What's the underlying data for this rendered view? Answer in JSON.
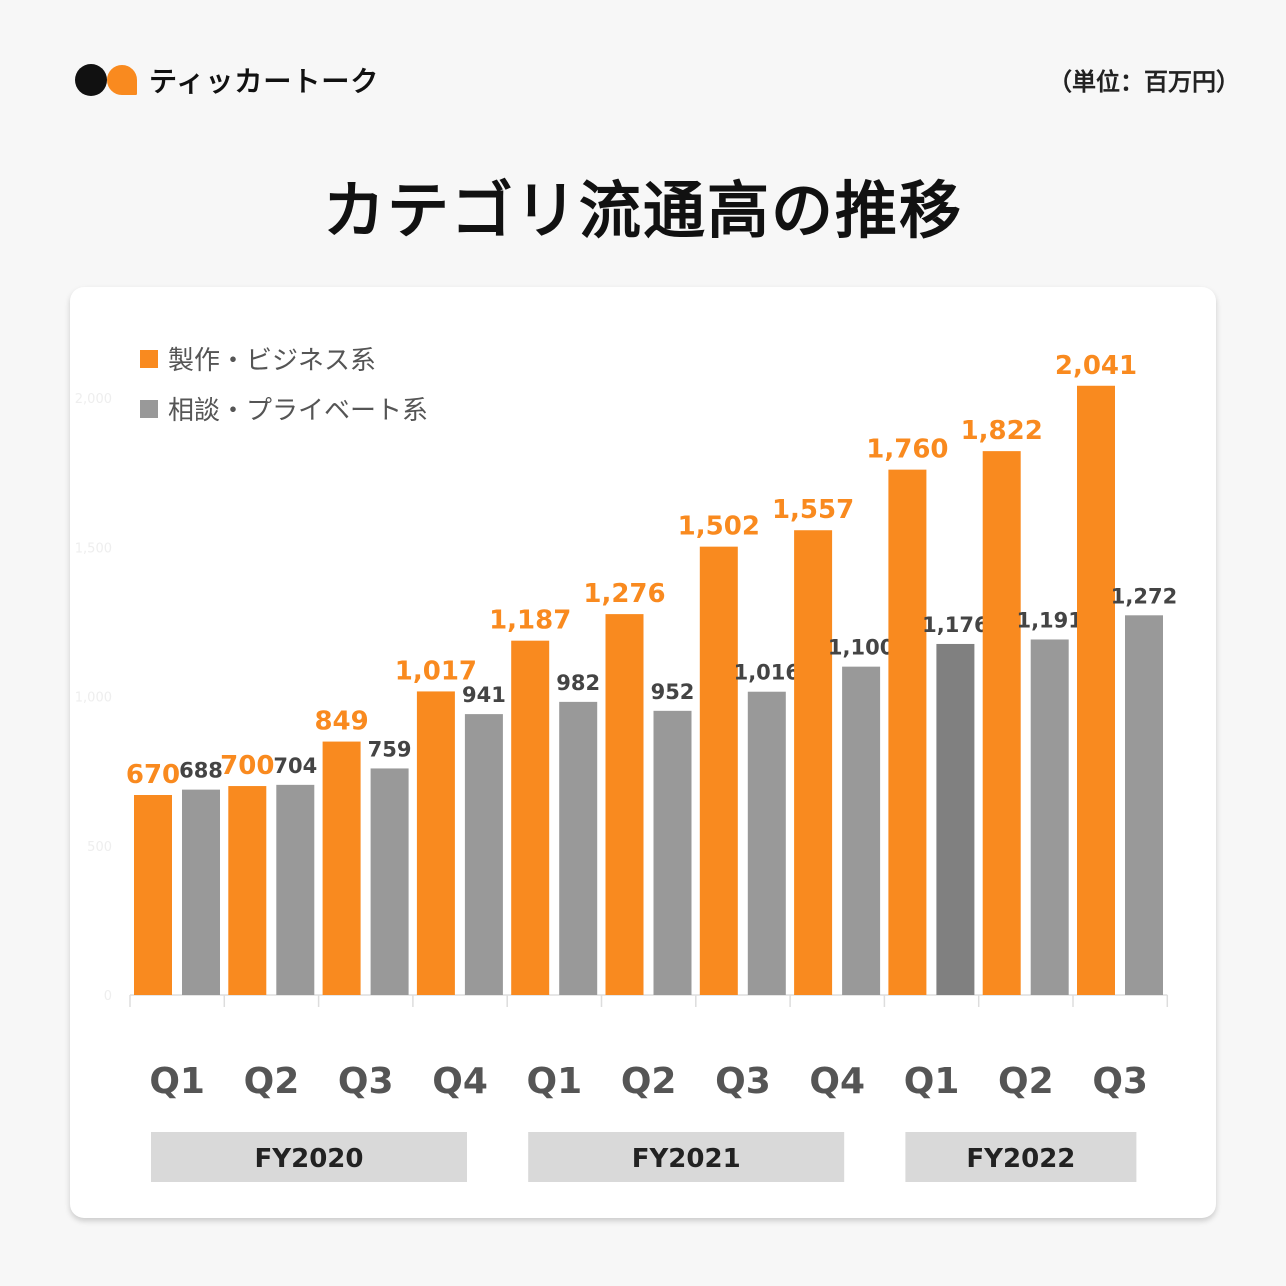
{
  "brand": "ティッカートーク",
  "unit": "（単位：百万円）",
  "title": "カテゴリ流通高の推移",
  "chart_data": {
    "type": "bar",
    "title": "カテゴリ流通高の推移",
    "ylabel": "百万円",
    "ylim": [
      0,
      2000
    ],
    "yticks": [
      "0",
      "500",
      "1,000",
      "1,500",
      "2,000"
    ],
    "categories": [
      "Q1",
      "Q2",
      "Q3",
      "Q4",
      "Q1",
      "Q2",
      "Q3",
      "Q4",
      "Q1",
      "Q2",
      "Q3"
    ],
    "groups": [
      {
        "label": "FY2020",
        "span": 4
      },
      {
        "label": "FY2021",
        "span": 4
      },
      {
        "label": "FY2022",
        "span": 3
      }
    ],
    "series": [
      {
        "name": "製作・ビジネス系",
        "color": "#f98a1f",
        "values": [
          670,
          700,
          849,
          1017,
          1187,
          1276,
          1502,
          1557,
          1760,
          1822,
          2041
        ],
        "labels": [
          "670",
          "700",
          "849",
          "1,017",
          "1,187",
          "1,276",
          "1,502",
          "1,557",
          "1,760",
          "1,822",
          "2,041"
        ]
      },
      {
        "name": "相談・プライベート系",
        "color": "#999999",
        "values": [
          688,
          704,
          759,
          941,
          982,
          952,
          1016,
          1100,
          1176,
          1191,
          1272
        ],
        "labels": [
          "688",
          "704",
          "759",
          "941",
          "982",
          "952",
          "1,016",
          "1,100",
          "1,176",
          "1,191",
          "1,272"
        ]
      }
    ],
    "legend": "top-left"
  }
}
